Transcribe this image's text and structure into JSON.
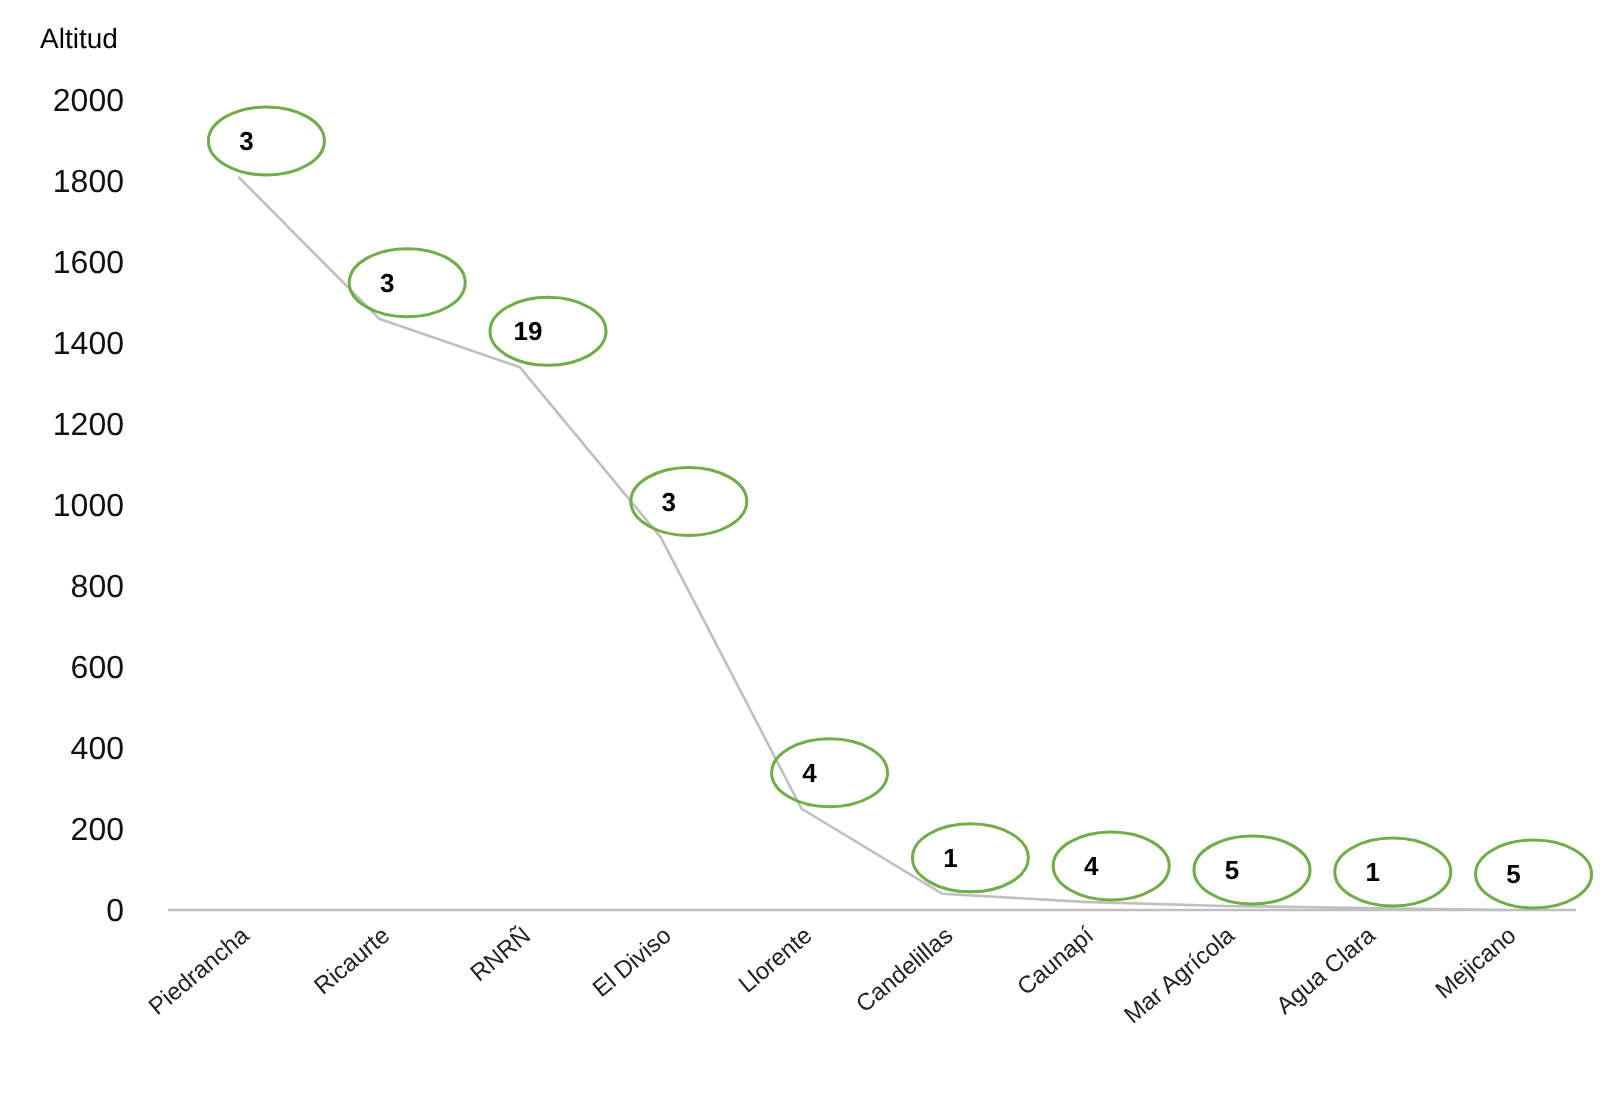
{
  "chart_data": {
    "type": "line",
    "ylabel": "Altitud",
    "categories": [
      "Piedrancha",
      "Ricaurte",
      "RNRÑ",
      "El Diviso",
      "Llorente",
      "Candelillas",
      "Caunapí",
      "Mar Agrícola",
      "Agua Clara",
      "Mejicano"
    ],
    "series": [
      {
        "color": "#bfbfbf",
        "values": [
          1810,
          1460,
          1340,
          920,
          250,
          40,
          20,
          10,
          5,
          0
        ]
      }
    ],
    "ylim": [
      0,
      2000
    ],
    "yticks": [
      0,
      200,
      400,
      600,
      800,
      1000,
      1200,
      1400,
      1600,
      1800,
      2000
    ],
    "grid": false,
    "marker": "none",
    "line_style": "solid",
    "annotations": [
      {
        "text": "3",
        "x": "Piedrancha",
        "y": 1810
      },
      {
        "text": "3",
        "x": "Ricaurte",
        "y": 1460
      },
      {
        "text": "19",
        "x": "RNRÑ",
        "y": 1340
      },
      {
        "text": "3",
        "x": "El Diviso",
        "y": 920
      },
      {
        "text": "4",
        "x": "Llorente",
        "y": 250
      },
      {
        "text": "1",
        "x": "Candelillas",
        "y": 40
      },
      {
        "text": "4",
        "x": "Caunapí",
        "y": 20
      },
      {
        "text": "5",
        "x": "Mar Agrícola",
        "y": 10
      },
      {
        "text": "1",
        "x": "Agua Clara",
        "y": 5
      },
      {
        "text": "5",
        "x": "Mejicano",
        "y": 0
      }
    ]
  }
}
